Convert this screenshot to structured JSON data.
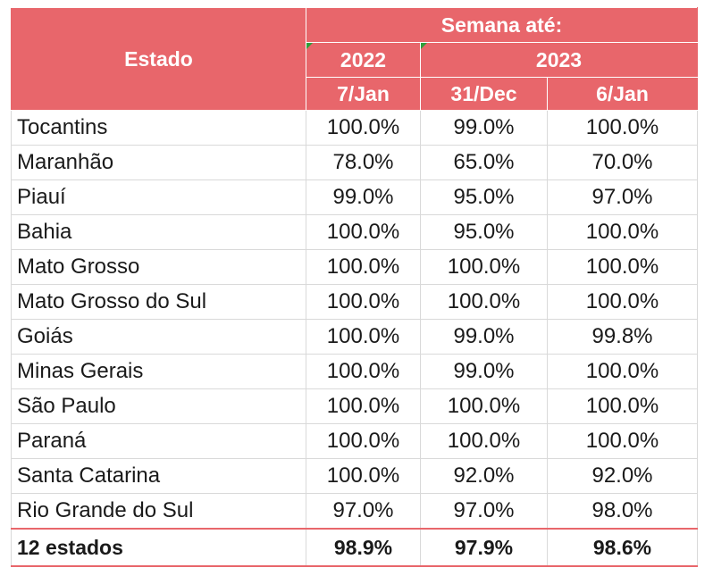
{
  "header": {
    "estado": "Estado",
    "semana": "Semana até:",
    "years": [
      "2022",
      "2023"
    ],
    "dates": [
      "7/Jan",
      "31/Dec",
      "6/Jan"
    ]
  },
  "rows": [
    {
      "estado": "Tocantins",
      "v": [
        "100.0%",
        "99.0%",
        "100.0%"
      ]
    },
    {
      "estado": "Maranhão",
      "v": [
        "78.0%",
        "65.0%",
        "70.0%"
      ]
    },
    {
      "estado": "Piauí",
      "v": [
        "99.0%",
        "95.0%",
        "97.0%"
      ]
    },
    {
      "estado": "Bahia",
      "v": [
        "100.0%",
        "95.0%",
        "100.0%"
      ]
    },
    {
      "estado": "Mato Grosso",
      "v": [
        "100.0%",
        "100.0%",
        "100.0%"
      ]
    },
    {
      "estado": "Mato Grosso do Sul",
      "v": [
        "100.0%",
        "100.0%",
        "100.0%"
      ]
    },
    {
      "estado": "Goiás",
      "v": [
        "100.0%",
        "99.0%",
        "99.8%"
      ]
    },
    {
      "estado": "Minas Gerais",
      "v": [
        "100.0%",
        "99.0%",
        "100.0%"
      ]
    },
    {
      "estado": "São Paulo",
      "v": [
        "100.0%",
        "100.0%",
        "100.0%"
      ]
    },
    {
      "estado": "Paraná",
      "v": [
        "100.0%",
        "100.0%",
        "100.0%"
      ]
    },
    {
      "estado": "Santa Catarina",
      "v": [
        "100.0%",
        "92.0%",
        "92.0%"
      ]
    },
    {
      "estado": "Rio Grande do Sul",
      "v": [
        "97.0%",
        "97.0%",
        "98.0%"
      ]
    }
  ],
  "total": {
    "estado": "12 estados",
    "v": [
      "98.9%",
      "97.9%",
      "98.6%"
    ]
  },
  "colors": {
    "header_bg": "#e8666b",
    "header_text": "#ffffff",
    "grid": "#d9d9d9",
    "comment_marker": "#2e9e3a"
  }
}
